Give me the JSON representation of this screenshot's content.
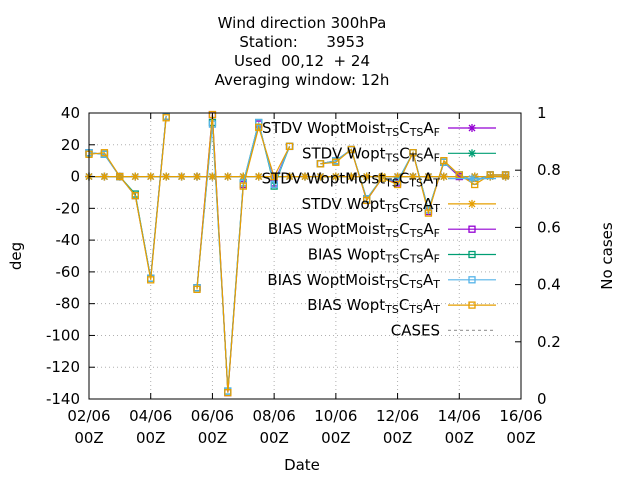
{
  "chart_data": {
    "type": "line",
    "title_lines": [
      "Wind direction 300hPa",
      "Station:      3953",
      "Used  00,12  + 24",
      "Averaging window: 12h"
    ],
    "xlabel": "Date",
    "ylabel": "deg",
    "y2label": "No cases",
    "ylim": [
      -140,
      40
    ],
    "y2lim": [
      0,
      1
    ],
    "yticks": [
      "40",
      "20",
      "0",
      "-20",
      "-40",
      "-60",
      "-80",
      "-100",
      "-120",
      "-140"
    ],
    "y2ticks": [
      "1",
      "0.8",
      "0.6",
      "0.4",
      "0.2",
      "0"
    ],
    "xticks": [
      {
        "top": "02/06",
        "bottom": "00Z"
      },
      {
        "top": "04/06",
        "bottom": "00Z"
      },
      {
        "top": "06/06",
        "bottom": "00Z"
      },
      {
        "top": "08/06",
        "bottom": "00Z"
      },
      {
        "top": "10/06",
        "bottom": "00Z"
      },
      {
        "top": "12/06",
        "bottom": "00Z"
      },
      {
        "top": "14/06",
        "bottom": "00Z"
      },
      {
        "top": "16/06",
        "bottom": "00Z"
      }
    ],
    "grid": true,
    "legend_position": "top-right",
    "x_days": [
      2,
      2.5,
      3,
      3.5,
      4,
      4.5,
      5,
      5.5,
      6,
      6.5,
      7,
      7.5,
      8,
      8.5,
      9,
      9.5,
      10,
      10.5,
      11,
      11.5,
      12,
      12.5,
      13,
      13.5,
      14,
      14.5,
      15,
      15.5
    ],
    "series": [
      {
        "name": "STDV WoptMoist_TS C_TS A_F",
        "name_parts": [
          "STDV WoptMoist",
          "TS",
          "C",
          "TS",
          "A",
          "F"
        ],
        "color": "#9400d3",
        "marker": "star",
        "values": [
          0,
          0,
          0,
          0,
          0,
          0,
          0,
          0,
          0,
          0,
          0,
          0,
          0,
          0,
          0,
          0,
          0,
          0,
          0,
          0,
          0,
          0,
          0,
          0,
          0,
          0,
          0,
          0
        ]
      },
      {
        "name": "STDV Wopt_TS C_TS A_F",
        "name_parts": [
          "STDV Wopt",
          "TS",
          "C",
          "TS",
          "A",
          "F"
        ],
        "color": "#009e73",
        "marker": "star",
        "values": [
          0,
          0,
          0,
          0,
          0,
          0,
          0,
          0,
          0,
          0,
          0,
          0,
          0,
          0,
          0,
          0,
          0,
          0,
          0,
          0,
          0,
          0,
          0,
          0,
          0,
          0,
          0,
          0
        ]
      },
      {
        "name": "STDV WoptMoist_TS C_TS A_T",
        "name_parts": [
          "STDV WoptMoist",
          "TS",
          "C",
          "TS",
          "A",
          "T"
        ],
        "color": "#56b4e9",
        "marker": "star",
        "values": [
          0,
          0,
          0,
          0,
          0,
          0,
          0,
          0,
          0,
          0,
          0,
          0,
          0,
          0,
          0,
          0,
          0,
          0,
          0,
          0,
          0,
          0,
          0,
          0,
          0,
          0,
          0,
          0
        ]
      },
      {
        "name": "STDV Wopt_TS C_TS A_T",
        "name_parts": [
          "STDV Wopt",
          "TS",
          "C",
          "TS",
          "A",
          "T"
        ],
        "color": "#e69f00",
        "marker": "star",
        "values": [
          0,
          0,
          0,
          0,
          0,
          0,
          0,
          0,
          0,
          0,
          0,
          0,
          0,
          0,
          0,
          0,
          0,
          0,
          0,
          0,
          0,
          0,
          0,
          0,
          0,
          0,
          0,
          0
        ]
      },
      {
        "name": "BIAS WoptMoist_TS C_TS A_F",
        "name_parts": [
          "BIAS WoptMoist",
          "TS",
          "C",
          "TS",
          "A",
          "F"
        ],
        "color": "#9400d3",
        "marker": "square",
        "values": [
          15,
          14,
          0,
          -12,
          -64,
          38,
          null,
          -70,
          39,
          -136,
          -5,
          33,
          -4,
          19,
          null,
          8,
          10,
          17,
          -15,
          -1,
          -4,
          15,
          -22,
          9,
          0,
          -3,
          1,
          1
        ]
      },
      {
        "name": "BIAS Wopt_TS C_TS A_F",
        "name_parts": [
          "BIAS Wopt",
          "TS",
          "C",
          "TS",
          "A",
          "F"
        ],
        "color": "#009e73",
        "marker": "square",
        "values": [
          15,
          14,
          0,
          -11,
          -64,
          38,
          null,
          -70,
          34,
          -135,
          -4,
          34,
          -6,
          19,
          null,
          8,
          10,
          17,
          -14,
          -1,
          -3,
          15,
          -21,
          9,
          1,
          -3,
          1,
          1
        ]
      },
      {
        "name": "BIAS WoptMoist_TS C_TS A_T",
        "name_parts": [
          "BIAS WoptMoist",
          "TS",
          "C",
          "TS",
          "A",
          "T"
        ],
        "color": "#56b4e9",
        "marker": "square",
        "values": [
          15,
          14,
          0,
          -12,
          -64,
          38,
          null,
          -70,
          33,
          -135,
          -4,
          34,
          -5,
          19,
          null,
          8,
          10,
          17,
          -14,
          -1,
          -3,
          15,
          -21,
          9,
          1,
          -3,
          1,
          1
        ]
      },
      {
        "name": "BIAS Wopt_TS C_TS A_T",
        "name_parts": [
          "BIAS Wopt",
          "TS",
          "C",
          "TS",
          "A",
          "T"
        ],
        "color": "#e69f00",
        "marker": "square",
        "values": [
          14,
          15,
          0,
          -12,
          -65,
          37,
          null,
          -71,
          39,
          -136,
          -6,
          31,
          0,
          19,
          null,
          8,
          9,
          17,
          -15,
          -1,
          -5,
          15,
          -23,
          10,
          1,
          -5,
          1,
          1
        ]
      },
      {
        "name": "CASES",
        "name_parts": [
          "CASES"
        ],
        "color": "#a0a0a0",
        "marker": "none",
        "dashed": true,
        "axis": "y2",
        "values": []
      }
    ]
  }
}
